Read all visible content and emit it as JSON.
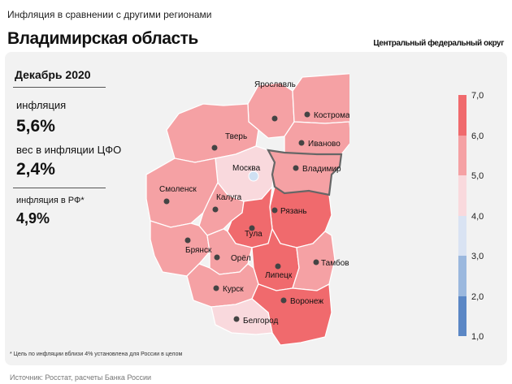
{
  "header": {
    "subtitle": "Инфляция в сравнении с другими регионами",
    "title": "Владимирская область",
    "district": "Центральный федеральный округ"
  },
  "stats": {
    "period": "Декабрь 2020",
    "inflation_label": "инфляция",
    "inflation_value": "5,6%",
    "weight_label": "вес в инфляции ЦФО",
    "weight_value": "2,4%",
    "russia_label": "инфляция в РФ*",
    "russia_value": "4,9%"
  },
  "colors": {
    "c1": "#5b87c5",
    "c2": "#9bb8de",
    "c3": "#d9e3f3",
    "c4": "#f9d9dd",
    "c5": "#f5a1a4",
    "c6": "#f06a6d"
  },
  "legend": {
    "ticks": [
      "7,0",
      "6,0",
      "5,0",
      "4,0",
      "3,0",
      "2,0",
      "1,0"
    ]
  },
  "regions": [
    {
      "name": "Ярославль",
      "bin": "5-6"
    },
    {
      "name": "Кострома",
      "bin": "5-6"
    },
    {
      "name": "Тверь",
      "bin": "5-6"
    },
    {
      "name": "Иваново",
      "bin": "5-6"
    },
    {
      "name": "Москва",
      "bin": "4-5"
    },
    {
      "name": "Владимир",
      "bin": "5-6",
      "selected": true
    },
    {
      "name": "Смоленск",
      "bin": "5-6"
    },
    {
      "name": "Калуга",
      "bin": "5-6"
    },
    {
      "name": "Рязань",
      "bin": "6-7"
    },
    {
      "name": "Тула",
      "bin": "6-7"
    },
    {
      "name": "Брянск",
      "bin": "5-6"
    },
    {
      "name": "Орёл",
      "bin": "5-6"
    },
    {
      "name": "Липецк",
      "bin": "6-7"
    },
    {
      "name": "Тамбов",
      "bin": "5-6"
    },
    {
      "name": "Курск",
      "bin": "5-6"
    },
    {
      "name": "Воронеж",
      "bin": "6-7"
    },
    {
      "name": "Белгород",
      "bin": "4-5"
    }
  ],
  "footnote": "* Цель по инфляции вблизи 4% установлена для России в целом",
  "source": "Источник: Росстат, расчеты Банка России"
}
